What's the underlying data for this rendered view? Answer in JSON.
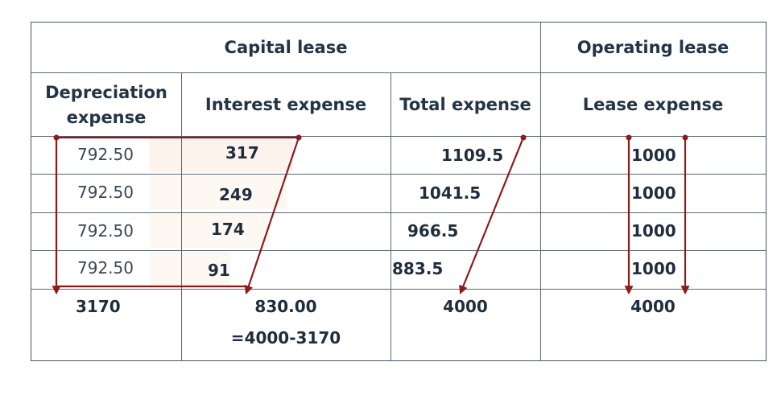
{
  "group_headers": {
    "capital_lease": "Capital lease",
    "operating_lease": "Operating lease"
  },
  "columns": {
    "depreciation_line1": "Depreciation",
    "depreciation_line2": "expense",
    "interest": "Interest expense",
    "total": "Total expense",
    "lease": "Lease expense"
  },
  "rows": [
    {
      "depreciation": "792.50",
      "interest": "317",
      "total": "1109.5",
      "lease": "1000"
    },
    {
      "depreciation": "792.50",
      "interest": "249",
      "total": "1041.5",
      "lease": "1000"
    },
    {
      "depreciation": "792.50",
      "interest": "174",
      "total": "966.5",
      "lease": "1000"
    },
    {
      "depreciation": "792.50",
      "interest": "91",
      "total": "883.5",
      "lease": "1000"
    }
  ],
  "totals": {
    "depreciation": "3170",
    "interest": "830.00",
    "interest_note": "=4000-3170",
    "total": "4000",
    "lease": "4000"
  },
  "colors": {
    "annotation_line": "#8b1c1c",
    "grid_line": "#5a6675",
    "cell_highlight": "#fdf3ec"
  }
}
